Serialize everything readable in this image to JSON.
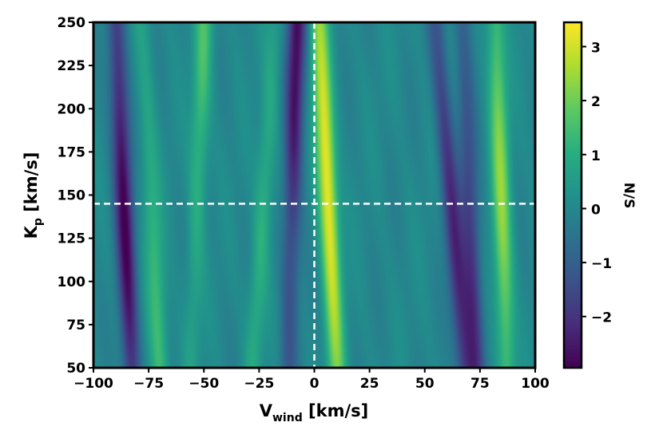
{
  "chart_data": {
    "type": "heatmap",
    "title": "",
    "x": {
      "label_main": "V",
      "label_sub": "wind",
      "label_unit": " [km/s]",
      "range": [
        -100,
        100
      ],
      "ticks": [
        -100,
        -75,
        -50,
        -25,
        0,
        25,
        50,
        75,
        100
      ],
      "tick_labels": [
        "−100",
        "−75",
        "−50",
        "−25",
        "0",
        "25",
        "50",
        "75",
        "100"
      ]
    },
    "y": {
      "label_main": "K",
      "label_sub": "p",
      "label_unit": " [km/s]",
      "range": [
        50,
        250
      ],
      "ticks": [
        50,
        75,
        100,
        125,
        150,
        175,
        200,
        225,
        250
      ],
      "tick_labels": [
        "50",
        "75",
        "100",
        "125",
        "150",
        "175",
        "200",
        "225",
        "250"
      ]
    },
    "colorbar": {
      "label": "N/S",
      "colormap": "viridis",
      "range": [
        -2.95,
        3.45
      ],
      "ticks": [
        -2,
        -1,
        0,
        1,
        2,
        3
      ],
      "tick_labels": [
        "−2",
        "−1",
        "0",
        "1",
        "2",
        "3"
      ]
    },
    "reference_lines": [
      {
        "orientation": "vertical",
        "value": 0,
        "style": "dashed",
        "color": "#ffffff"
      },
      {
        "orientation": "horizontal",
        "value": 145,
        "style": "dashed",
        "color": "#ffffff"
      }
    ],
    "features": [
      {
        "type": "ridge",
        "v_top": 2,
        "v_bottom": 10,
        "peak": 3.4,
        "peak_kp": 160
      },
      {
        "type": "ridge",
        "v_top": 82,
        "v_bottom": 87,
        "peak": 2.3,
        "peak_kp": 150
      },
      {
        "type": "ridge",
        "v_top": -50,
        "v_bottom": -56,
        "peak": 1.5,
        "peak_kp": 235
      },
      {
        "type": "ridge",
        "v_top": -18,
        "v_bottom": -28,
        "peak": 1.1,
        "peak_kp": 130
      },
      {
        "type": "ridge",
        "v_top": -78,
        "v_bottom": -70,
        "peak": 1.4,
        "peak_kp": 75
      },
      {
        "type": "trough",
        "v_top": -90,
        "v_bottom": -83,
        "peak": -2.9,
        "peak_kp": 140
      },
      {
        "type": "trough",
        "v_top": -8,
        "v_bottom": -12,
        "peak": -2.8,
        "peak_kp": 235
      },
      {
        "type": "trough",
        "v_top": 55,
        "v_bottom": 68,
        "peak": -2.2,
        "peak_kp": 120
      },
      {
        "type": "trough",
        "v_top": 67,
        "v_bottom": 73,
        "peak": -2.0,
        "peak_kp": 90
      }
    ]
  }
}
